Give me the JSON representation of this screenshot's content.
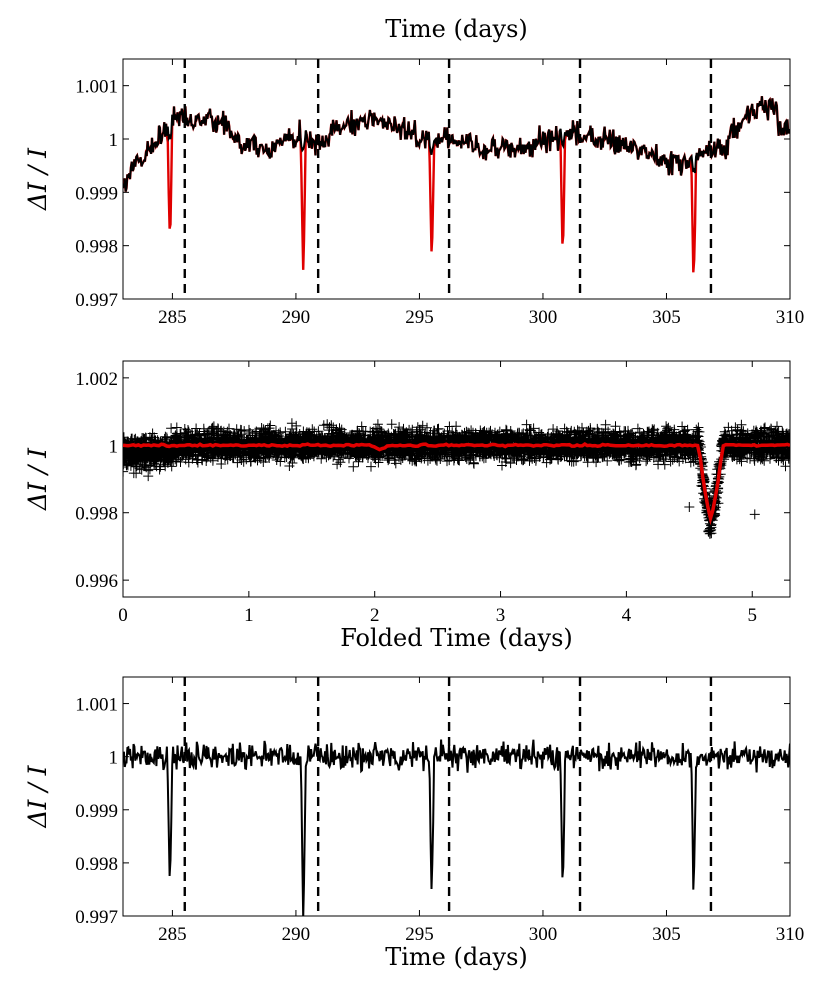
{
  "chart_data": [
    {
      "type": "line",
      "xlabel": "Time (days)",
      "xlabel_position": "top",
      "ylabel": "ΔI / I",
      "xlim": [
        283,
        310
      ],
      "ylim": [
        0.997,
        1.0015
      ],
      "xticks": [
        285,
        290,
        295,
        300,
        305,
        310
      ],
      "yticks": [
        {
          "value": 0.997,
          "label": "0.997"
        },
        {
          "value": 0.998,
          "label": "0.998"
        },
        {
          "value": 0.999,
          "label": "0.999"
        },
        {
          "value": 1.0,
          "label": "1"
        },
        {
          "value": 1.001,
          "label": "1.001"
        }
      ],
      "grid": false,
      "series": [
        {
          "role": "model",
          "color": "#e00000",
          "baseline": 1.0,
          "transit_depth_min": [
            0.998,
            0.99758,
            0.99792,
            0.99788,
            0.9978
          ]
        },
        {
          "role": "data",
          "color": "#000000",
          "baseline": 1.0,
          "noise_amplitude": 0.0004
        }
      ],
      "transit_centers": [
        284.9,
        290.3,
        295.5,
        300.8,
        306.1
      ],
      "dashed_lines_x": [
        285.5,
        290.9,
        296.2,
        301.5,
        306.8
      ]
    },
    {
      "type": "scatter",
      "xlabel": "Folded Time (days)",
      "ylabel": "ΔI / I",
      "xlim": [
        0,
        5.3
      ],
      "ylim": [
        0.9955,
        1.0025
      ],
      "xticks": [
        0,
        1,
        2,
        3,
        4,
        5
      ],
      "yticks": [
        {
          "value": 0.996,
          "label": "0.996"
        },
        {
          "value": 0.998,
          "label": "0.998"
        },
        {
          "value": 1.0,
          "label": "1"
        },
        {
          "value": 1.002,
          "label": "1.002"
        }
      ],
      "grid": false,
      "series": [
        {
          "role": "folded-data",
          "marker": "+",
          "color": "#000000",
          "band": [
            0.9987,
            1.0013
          ]
        },
        {
          "role": "binned-model",
          "color": "#e00000",
          "baseline": 1.0,
          "transit_x": 4.67,
          "transit_min": 0.99778
        }
      ],
      "outliers": [
        {
          "x": 4.5,
          "y": 0.99817
        },
        {
          "x": 5.02,
          "y": 0.99795
        }
      ]
    },
    {
      "type": "line",
      "xlabel": "Time (days)",
      "ylabel": "ΔI / I",
      "xlim": [
        283,
        310
      ],
      "ylim": [
        0.997,
        1.0015
      ],
      "xticks": [
        285,
        290,
        295,
        300,
        305,
        310
      ],
      "yticks": [
        {
          "value": 0.997,
          "label": "0.997"
        },
        {
          "value": 0.998,
          "label": "0.998"
        },
        {
          "value": 0.999,
          "label": "0.999"
        },
        {
          "value": 1.0,
          "label": "1"
        },
        {
          "value": 1.001,
          "label": "1.001"
        }
      ],
      "grid": false,
      "series": [
        {
          "role": "detrended-data",
          "color": "#000000",
          "baseline": 1.0,
          "transit_depth_min": [
            0.9978,
            0.99732,
            0.99768,
            0.99788,
            0.99768
          ]
        }
      ],
      "transit_centers": [
        284.9,
        290.3,
        295.5,
        300.8,
        306.1
      ],
      "dashed_lines_x": [
        285.5,
        290.9,
        296.2,
        301.5,
        306.8
      ]
    }
  ]
}
